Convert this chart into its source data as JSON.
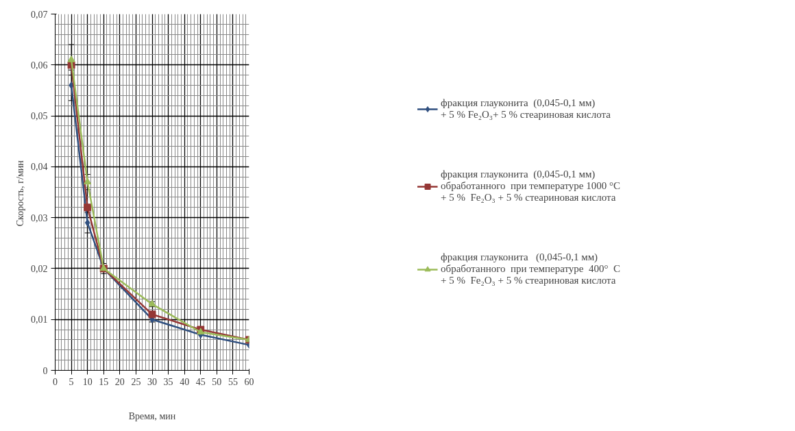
{
  "chart_data": {
    "type": "line",
    "xlabel": "Время, мин",
    "ylabel": "Скорость,  г/мин",
    "x": [
      5,
      10,
      15,
      30,
      45,
      60
    ],
    "series": [
      {
        "name": "фракция глауконита  (0,045-0,1 мм)\n+ 5 % Fe₂O₃+ 5 % стеариновая кислота",
        "color": "#2f4f7f",
        "marker": "diamond",
        "values": [
          0.056,
          0.029,
          0.02,
          0.01,
          0.007,
          0.005
        ],
        "errors": [
          0.003,
          0.002,
          0.001,
          0.0005,
          null,
          null
        ]
      },
      {
        "name": "фракция глауконита  (0,045-0,1 мм)\nобработанного  при температуре 1000 °С\n+ 5 %  Fe₂O₃ + 5 % стеариновая кислота",
        "color": "#953735",
        "marker": "square",
        "values": [
          0.06,
          0.032,
          0.02,
          0.011,
          0.008,
          0.006
        ]
      },
      {
        "name": "фракция глауконита   (0,045-0,1 мм)\nобработанного  при температуре  400°  С\n+ 5 %  Fe₂O₃ + 5 % стеариновая кислота",
        "color": "#9bbb59",
        "marker": "triangle",
        "values": [
          0.061,
          0.037,
          0.02,
          0.013,
          0.0075,
          0.006
        ],
        "errors": [
          0.003,
          0.0015,
          null,
          0.0005,
          null,
          null
        ]
      }
    ],
    "xlim": [
      0,
      60
    ],
    "xticks": [
      0,
      5,
      10,
      15,
      20,
      25,
      30,
      35,
      40,
      45,
      50,
      55,
      60
    ],
    "ylim": [
      0,
      0.07
    ],
    "yticks": [
      0,
      {
        "value": 0.01,
        "label": "0,01"
      },
      {
        "value": 0.02,
        "label": "0,02"
      },
      {
        "value": 0.03,
        "label": "0,03"
      },
      {
        "value": 0.04,
        "label": "0,04"
      },
      {
        "value": 0.05,
        "label": "0,05"
      },
      {
        "value": 0.06,
        "label": "0,06"
      },
      {
        "value": 0.07,
        "label": "0,07"
      }
    ],
    "grid": true,
    "legend": "right",
    "line_style": "solid"
  }
}
